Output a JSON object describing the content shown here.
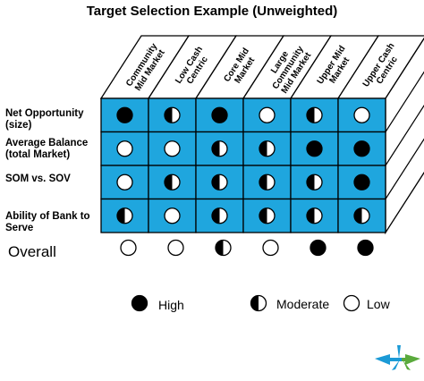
{
  "title": "Target Selection Example (Unweighted)",
  "columns": [
    [
      "Community",
      "Mid Market"
    ],
    [
      "Low Cash",
      "Centric"
    ],
    [
      "Core Mid",
      "Market"
    ],
    [
      "Large",
      "Community",
      "Mid Market"
    ],
    [
      "Upper Mid",
      "Market"
    ],
    [
      "Upper Cash",
      "Centric"
    ]
  ],
  "rows": [
    {
      "label": "Net Opportunity (size)",
      "lines": [
        "Net Opportunity",
        "(size)"
      ],
      "ratings": [
        "high",
        "moderate",
        "high",
        "low",
        "moderate",
        "low"
      ]
    },
    {
      "label": "Average Balance (total Market)",
      "lines": [
        "Average Balance",
        "(total Market)"
      ],
      "ratings": [
        "low",
        "low",
        "moderate",
        "moderate",
        "high",
        "high"
      ]
    },
    {
      "label": "SOM vs. SOV",
      "lines": [
        "SOM vs. SOV"
      ],
      "ratings": [
        "low",
        "moderate",
        "moderate",
        "moderate",
        "moderate",
        "high"
      ]
    },
    {
      "label": "Ability of Bank to Serve",
      "lines": [
        "Ability of Bank to",
        "Serve"
      ],
      "ratings": [
        "moderate",
        "low",
        "moderate",
        "moderate",
        "moderate",
        "moderate"
      ]
    }
  ],
  "overall": {
    "label": "Overall",
    "ratings": [
      "low",
      "low",
      "moderate",
      "low",
      "high",
      "high"
    ]
  },
  "legend": {
    "high": "High",
    "moderate": "Moderate",
    "low": "Low"
  },
  "colors": {
    "cell": "#1fa6de",
    "logo_blue": "#1b9ad6",
    "logo_green": "#5aaa3c"
  }
}
